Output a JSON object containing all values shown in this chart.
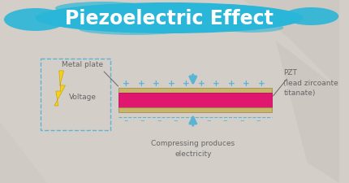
{
  "title": "Piezoelectric Effect",
  "title_color": "#ffffff",
  "title_brush_color": "#29b6d8",
  "bg_color": "#d4cec9",
  "box_border_color": "#5ab4d6",
  "pzt_color": "#e0176e",
  "plate_color": "#c8b46a",
  "plus_color": "#5ab4d6",
  "minus_color": "#5ab4d6",
  "arrow_color": "#5ab4d6",
  "lightning_color": "#f5d020",
  "label_color": "#666666",
  "metal_plate_label": "Metal plate",
  "voltage_label": "Voltage",
  "pzt_label": "PZT\n(lead zircoante\ntitanate)",
  "compress_label": "Compressing produces\nelectricity"
}
